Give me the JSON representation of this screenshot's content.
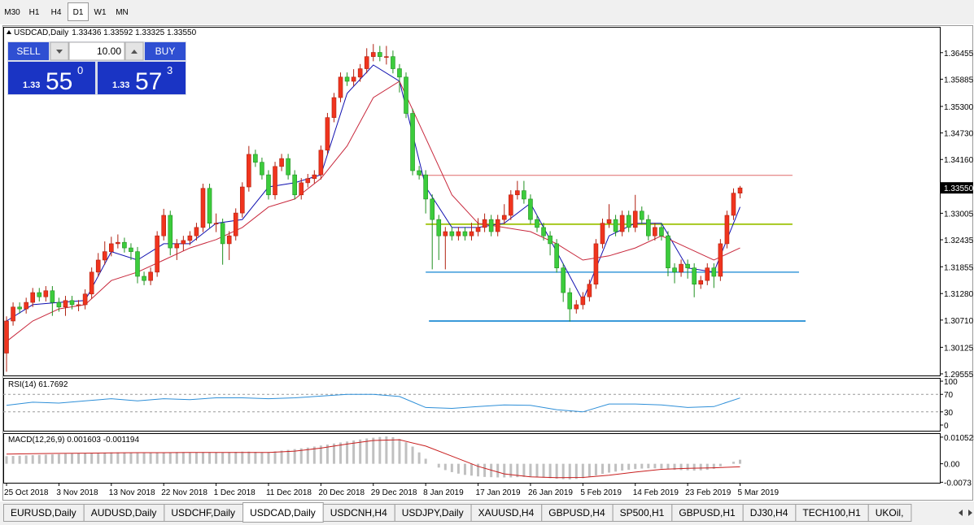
{
  "toolbar": {
    "timeframes": [
      "M30",
      "H1",
      "H4",
      "D1",
      "W1",
      "MN"
    ],
    "active": 3
  },
  "trade_panel": {
    "sell": "SELL",
    "buy": "BUY",
    "volume": "10.00",
    "bid": {
      "prefix": "1.33",
      "pips": "55",
      "fraction": "0"
    },
    "ask": {
      "prefix": "1.33",
      "pips": "57",
      "fraction": "3"
    }
  },
  "chart_data": [
    {
      "type": "candlestick",
      "title": "USDCAD,Daily",
      "ohlc_text": "1.33436 1.33592 1.33325 1.33550",
      "up_color": "#f0341e",
      "down_color": "#3ccc3c",
      "xlim": [
        -0.5,
        142.5
      ],
      "ylim": [
        1.2952,
        1.3701
      ],
      "yticks": [
        1.36455,
        1.35885,
        {
          "value": 1.353,
          "label": "1.35300"
        },
        {
          "value": 1.3473,
          "label": "1.34730"
        },
        {
          "value": 1.3416,
          "label": "1.34160"
        },
        1.33005,
        1.32435,
        1.31855,
        {
          "value": 1.3128,
          "label": "1.31280"
        },
        {
          "value": 1.3071,
          "label": "1.30710"
        },
        1.30125,
        1.29555
      ],
      "last_price": {
        "value": 1.3355,
        "label": "1.33550"
      },
      "categories": [
        "25 Oct 2018",
        null,
        null,
        null,
        null,
        null,
        null,
        null,
        "3 Nov 2018",
        null,
        null,
        null,
        null,
        null,
        null,
        null,
        "13 Nov 2018",
        null,
        null,
        null,
        null,
        null,
        null,
        null,
        "22 Nov 2018",
        null,
        null,
        null,
        null,
        null,
        null,
        null,
        "1 Dec 2018",
        null,
        null,
        null,
        null,
        null,
        null,
        null,
        "11 Dec 2018",
        null,
        null,
        null,
        null,
        null,
        null,
        null,
        "20 Dec 2018",
        null,
        null,
        null,
        null,
        null,
        null,
        null,
        "29 Dec 2018",
        null,
        null,
        null,
        null,
        null,
        null,
        null,
        "8 Jan 2019",
        null,
        null,
        null,
        null,
        null,
        null,
        null,
        "17 Jan 2019",
        null,
        null,
        null,
        null,
        null,
        null,
        null,
        "26 Jan 2019",
        null,
        null,
        null,
        null,
        null,
        null,
        null,
        "5 Feb 2019",
        null,
        null,
        null,
        null,
        null,
        null,
        null,
        "14 Feb 2019",
        null,
        null,
        null,
        null,
        null,
        null,
        null,
        "23 Feb 2019",
        null,
        null,
        null,
        null,
        null,
        null,
        null,
        "5 Mar 2019"
      ],
      "open": [
        1.3,
        1.3069,
        1.3099,
        1.3095,
        1.3109,
        1.313,
        1.3121,
        1.3134,
        1.3109,
        1.3099,
        1.3113,
        1.3104,
        1.3104,
        1.3127,
        1.3174,
        1.32,
        1.3218,
        1.3235,
        1.3238,
        1.3226,
        1.3218,
        1.3165,
        1.3156,
        1.3174,
        1.3252,
        1.3296,
        1.3226,
        1.3235,
        1.3242,
        1.3252,
        1.327,
        1.3354,
        1.3279,
        1.3279,
        1.3235,
        1.3252,
        1.3301,
        1.3357,
        1.3427,
        1.341,
        1.3383,
        1.334,
        1.3401,
        1.3418,
        1.3383,
        1.334,
        1.3366,
        1.3375,
        1.3383,
        1.3436,
        1.3506,
        1.3549,
        1.3593,
        1.3584,
        1.3593,
        1.3611,
        1.3637,
        1.3646,
        1.3637,
        1.3637,
        1.3611,
        1.3593,
        1.3515,
        1.3392,
        1.3383,
        1.3331,
        1.3287,
        1.3252,
        1.3261,
        1.3252,
        1.3261,
        1.3252,
        1.3261,
        1.327,
        1.3287,
        1.3261,
        1.3287,
        1.3296,
        1.334,
        1.3349,
        1.3331,
        1.3287,
        1.327,
        1.3252,
        1.3235,
        1.3183,
        1.313,
        1.3095,
        1.3104,
        1.3121,
        1.3148,
        1.3235,
        1.3279,
        1.3287,
        1.3261,
        1.3296,
        1.327,
        1.3305,
        1.3287,
        1.3252,
        1.327,
        1.3252,
        1.3183,
        1.3174,
        1.3191,
        1.3183,
        1.3148,
        1.3156,
        1.3183,
        1.3165,
        1.3235,
        1.3296,
        1.33436
      ],
      "high": [
        1.3079,
        1.3109,
        1.3109,
        1.3119,
        1.314,
        1.314,
        1.3144,
        1.3144,
        1.3119,
        1.3123,
        1.3123,
        1.3114,
        1.3137,
        1.3184,
        1.3215,
        1.324,
        1.325,
        1.3255,
        1.3248,
        1.3236,
        1.3228,
        1.3175,
        1.3184,
        1.3262,
        1.331,
        1.3306,
        1.3245,
        1.3252,
        1.3262,
        1.328,
        1.3364,
        1.3364,
        1.33,
        1.3289,
        1.3262,
        1.3311,
        1.3367,
        1.3445,
        1.3437,
        1.342,
        1.3393,
        1.3411,
        1.3428,
        1.3428,
        1.3393,
        1.3376,
        1.3385,
        1.3393,
        1.3446,
        1.3516,
        1.3559,
        1.3603,
        1.3603,
        1.361,
        1.3621,
        1.3655,
        1.3664,
        1.366,
        1.366,
        1.365,
        1.3621,
        1.3603,
        1.3525,
        1.3402,
        1.3393,
        1.3341,
        1.3297,
        1.3271,
        1.3271,
        1.3271,
        1.3271,
        1.328,
        1.329,
        1.33,
        1.3297,
        1.3297,
        1.332,
        1.335,
        1.337,
        1.337,
        1.3341,
        1.3297,
        1.328,
        1.3262,
        1.3245,
        1.3193,
        1.314,
        1.3114,
        1.3131,
        1.3158,
        1.3245,
        1.3289,
        1.332,
        1.3297,
        1.3306,
        1.3306,
        1.334,
        1.3315,
        1.3297,
        1.328,
        1.328,
        1.3262,
        1.3193,
        1.3201,
        1.3201,
        1.3193,
        1.3166,
        1.3193,
        1.3193,
        1.3245,
        1.3306,
        1.3354,
        1.33592
      ],
      "low": [
        1.296,
        1.3059,
        1.3085,
        1.3085,
        1.3099,
        1.3111,
        1.3111,
        1.308,
        1.3089,
        1.308,
        1.3094,
        1.309,
        1.3094,
        1.3117,
        1.3164,
        1.319,
        1.3208,
        1.3225,
        1.3216,
        1.32,
        1.315,
        1.3146,
        1.3146,
        1.3164,
        1.3242,
        1.321,
        1.32,
        1.322,
        1.3232,
        1.3242,
        1.326,
        1.3269,
        1.326,
        1.319,
        1.32,
        1.3242,
        1.3291,
        1.3347,
        1.34,
        1.3373,
        1.333,
        1.333,
        1.3391,
        1.3373,
        1.333,
        1.333,
        1.3356,
        1.3365,
        1.3373,
        1.3426,
        1.3496,
        1.3539,
        1.3574,
        1.3574,
        1.3583,
        1.3601,
        1.3627,
        1.3627,
        1.362,
        1.3601,
        1.356,
        1.3505,
        1.3382,
        1.3373,
        1.33,
        1.318,
        1.32,
        1.318,
        1.3242,
        1.3242,
        1.3242,
        1.3242,
        1.3251,
        1.326,
        1.3251,
        1.3251,
        1.3277,
        1.3286,
        1.333,
        1.3321,
        1.3277,
        1.326,
        1.3242,
        1.321,
        1.3173,
        1.311,
        1.3068,
        1.3085,
        1.3094,
        1.3111,
        1.3138,
        1.3225,
        1.3269,
        1.3251,
        1.3251,
        1.326,
        1.326,
        1.3277,
        1.3242,
        1.3242,
        1.3242,
        1.3165,
        1.315,
        1.3164,
        1.316,
        1.312,
        1.3138,
        1.3146,
        1.314,
        1.3155,
        1.3225,
        1.3286,
        1.33325
      ],
      "close": [
        1.3069,
        1.3099,
        1.3095,
        1.3109,
        1.313,
        1.3121,
        1.3134,
        1.3109,
        1.3099,
        1.3113,
        1.3104,
        1.3104,
        1.3127,
        1.3174,
        1.32,
        1.3218,
        1.3235,
        1.3238,
        1.3226,
        1.3218,
        1.3165,
        1.3156,
        1.3174,
        1.3252,
        1.3296,
        1.3226,
        1.3235,
        1.3242,
        1.3252,
        1.327,
        1.3354,
        1.3279,
        1.3279,
        1.3235,
        1.3252,
        1.3301,
        1.3357,
        1.3427,
        1.341,
        1.3383,
        1.334,
        1.3401,
        1.3418,
        1.3383,
        1.334,
        1.3366,
        1.3375,
        1.3383,
        1.3436,
        1.3506,
        1.3549,
        1.3593,
        1.3584,
        1.3593,
        1.3611,
        1.3637,
        1.3646,
        1.3637,
        1.3637,
        1.3611,
        1.3593,
        1.3515,
        1.3392,
        1.3383,
        1.3331,
        1.3287,
        1.3252,
        1.3261,
        1.3252,
        1.3261,
        1.3252,
        1.3261,
        1.327,
        1.3287,
        1.3261,
        1.3287,
        1.3296,
        1.334,
        1.3349,
        1.3331,
        1.3287,
        1.327,
        1.3252,
        1.3235,
        1.3183,
        1.313,
        1.3095,
        1.3104,
        1.3121,
        1.3148,
        1.3235,
        1.3279,
        1.3287,
        1.3261,
        1.3296,
        1.327,
        1.3305,
        1.3287,
        1.3252,
        1.327,
        1.3252,
        1.3183,
        1.3174,
        1.3191,
        1.3183,
        1.3148,
        1.3156,
        1.3183,
        1.3165,
        1.3235,
        1.3296,
        1.33436,
        1.3355
      ],
      "series": [
        {
          "color": "#1010b0",
          "x": [
            0,
            4,
            8,
            12,
            16,
            20,
            24,
            28,
            32,
            36,
            40,
            44,
            48,
            52,
            56,
            60,
            64,
            68,
            72,
            76,
            80,
            84,
            88,
            92,
            96,
            100,
            104,
            108,
            112
          ],
          "values": [
            1.3069,
            1.3104,
            1.3109,
            1.3113,
            1.3218,
            1.32,
            1.3235,
            1.3235,
            1.3279,
            1.3287,
            1.3357,
            1.3366,
            1.3383,
            1.3558,
            1.3619,
            1.3584,
            1.3357,
            1.327,
            1.327,
            1.3279,
            1.3322,
            1.3218,
            1.3113,
            1.3252,
            1.3279,
            1.3279,
            1.3183,
            1.3174,
            1.3314
          ]
        },
        {
          "color": "#c8283c",
          "x": [
            0,
            4,
            8,
            12,
            16,
            20,
            24,
            28,
            32,
            36,
            40,
            44,
            48,
            52,
            56,
            60,
            64,
            68,
            72,
            76,
            80,
            84,
            88,
            92,
            96,
            100,
            104,
            108,
            112
          ],
          "values": [
            1.3025,
            1.3069,
            1.3095,
            1.3104,
            1.3156,
            1.3174,
            1.32,
            1.3226,
            1.3244,
            1.327,
            1.3314,
            1.3331,
            1.3375,
            1.3445,
            1.3549,
            1.3584,
            1.3462,
            1.334,
            1.3279,
            1.327,
            1.3261,
            1.3235,
            1.32,
            1.3209,
            1.3226,
            1.3252,
            1.3226,
            1.32,
            1.3226
          ]
        }
      ],
      "levels": [
        {
          "value": 1.3382,
          "color": "#e06a6a",
          "width": 1,
          "from": 63,
          "to": 120
        },
        {
          "value": 1.3277,
          "color": "#a6c81e",
          "width": 2,
          "from": 64,
          "to": 120
        },
        {
          "value": 1.3174,
          "color": "#3a9ad9",
          "width": 1.5,
          "from": 64,
          "to": 121
        },
        {
          "value": 1.3069,
          "color": "#3a9ad9",
          "width": 2,
          "from": 64.5,
          "to": 122
        }
      ]
    },
    {
      "type": "line",
      "title": "RSI(14) 61.7692",
      "xlim": [
        -0.5,
        142.5
      ],
      "ylim": [
        -13,
        107.5
      ],
      "yticks": [
        100,
        70,
        30,
        0
      ],
      "levels": [
        70,
        30
      ],
      "series": [
        {
          "color": "#2e8fd8",
          "x": [
            0,
            4,
            8,
            12,
            16,
            20,
            24,
            28,
            32,
            36,
            40,
            44,
            48,
            52,
            56,
            60,
            64,
            68,
            72,
            76,
            80,
            84,
            88,
            92,
            96,
            100,
            104,
            108,
            112
          ],
          "values": [
            45,
            52,
            50,
            55,
            60,
            55,
            60,
            58,
            62,
            62,
            60,
            62,
            66,
            70,
            70,
            65,
            40,
            38,
            42,
            46,
            45,
            35,
            30,
            48,
            48,
            46,
            40,
            42,
            61.7692
          ]
        }
      ]
    },
    {
      "type": "macd",
      "title": "MACD(12,26,9) 0.001603 -0.001194",
      "xlim": [
        -0.5,
        142.5
      ],
      "ylim": [
        -0.0075,
        0.0121
      ],
      "yticks": [
        0.010525,
        {
          "value": 0,
          "label": "0.00"
        },
        -0.0073
      ],
      "bar_color": "#c0c0c0",
      "values": [
        0.003,
        0.0031,
        0.0032,
        0.0033,
        0.0034,
        0.0035,
        0.0036,
        0.0037,
        0.0038,
        0.0039,
        0.004,
        0.0041,
        0.0042,
        0.0043,
        0.0044,
        0.0044,
        0.0045,
        0.0045,
        0.0044,
        0.0043,
        0.0042,
        0.0042,
        0.0043,
        0.0044,
        0.0045,
        0.0045,
        0.0046,
        0.0046,
        0.0045,
        0.0045,
        0.0046,
        0.0046,
        0.0045,
        0.0045,
        0.0046,
        0.0047,
        0.0048,
        0.0048,
        0.0047,
        0.0046,
        0.0046,
        0.0049,
        0.0052,
        0.0055,
        0.0058,
        0.0061,
        0.0064,
        0.0068,
        0.0072,
        0.0076,
        0.008,
        0.0084,
        0.0088,
        0.0092,
        0.0096,
        0.01,
        0.0103,
        0.0106,
        0.0108,
        0.0105,
        0.0098,
        0.0085,
        0.0068,
        0.0045,
        0.002,
        0.0,
        -0.0015,
        -0.0025,
        -0.0033,
        -0.0039,
        -0.0044,
        -0.0047,
        -0.005,
        -0.0052,
        -0.0053,
        -0.0054,
        -0.0054,
        -0.0054,
        -0.0053,
        -0.0052,
        -0.0052,
        -0.0053,
        -0.0055,
        -0.0057,
        -0.0059,
        -0.0061,
        -0.0062,
        -0.006,
        -0.0057,
        -0.0052,
        -0.0046,
        -0.004,
        -0.0035,
        -0.0031,
        -0.0027,
        -0.0024,
        -0.0021,
        -0.0019,
        -0.0018,
        -0.0018,
        -0.0019,
        -0.0022,
        -0.0024,
        -0.0025,
        -0.0026,
        -0.0027,
        -0.0026,
        -0.0024,
        -0.002,
        -0.001,
        0.0,
        0.0008,
        0.001603
      ],
      "series": [
        {
          "color": "#c81e1e",
          "x": [
            0,
            4,
            8,
            12,
            16,
            20,
            24,
            28,
            32,
            36,
            40,
            44,
            48,
            52,
            56,
            60,
            64,
            68,
            72,
            76,
            80,
            84,
            88,
            92,
            96,
            100,
            104,
            108,
            112
          ],
          "values": [
            0.0038,
            0.004,
            0.0041,
            0.0042,
            0.0043,
            0.0044,
            0.0044,
            0.0045,
            0.0045,
            0.0045,
            0.0045,
            0.005,
            0.0062,
            0.0078,
            0.0092,
            0.0095,
            0.007,
            0.003,
            -0.001,
            -0.004,
            -0.0052,
            -0.0055,
            -0.0054,
            -0.0045,
            -0.0033,
            -0.0022,
            -0.0018,
            -0.0016,
            -0.001194
          ]
        }
      ]
    }
  ],
  "tabs": {
    "items": [
      "EURUSD,Daily",
      "AUDUSD,Daily",
      "USDCHF,Daily",
      "USDCAD,Daily",
      "USDCNH,H4",
      "USDJPY,Daily",
      "XAUUSD,H4",
      "GBPUSD,H4",
      "SP500,H1",
      "GBPUSD,H1",
      "DJ30,H4",
      "TECH100,H1",
      "UKOil,"
    ],
    "active": 3
  }
}
